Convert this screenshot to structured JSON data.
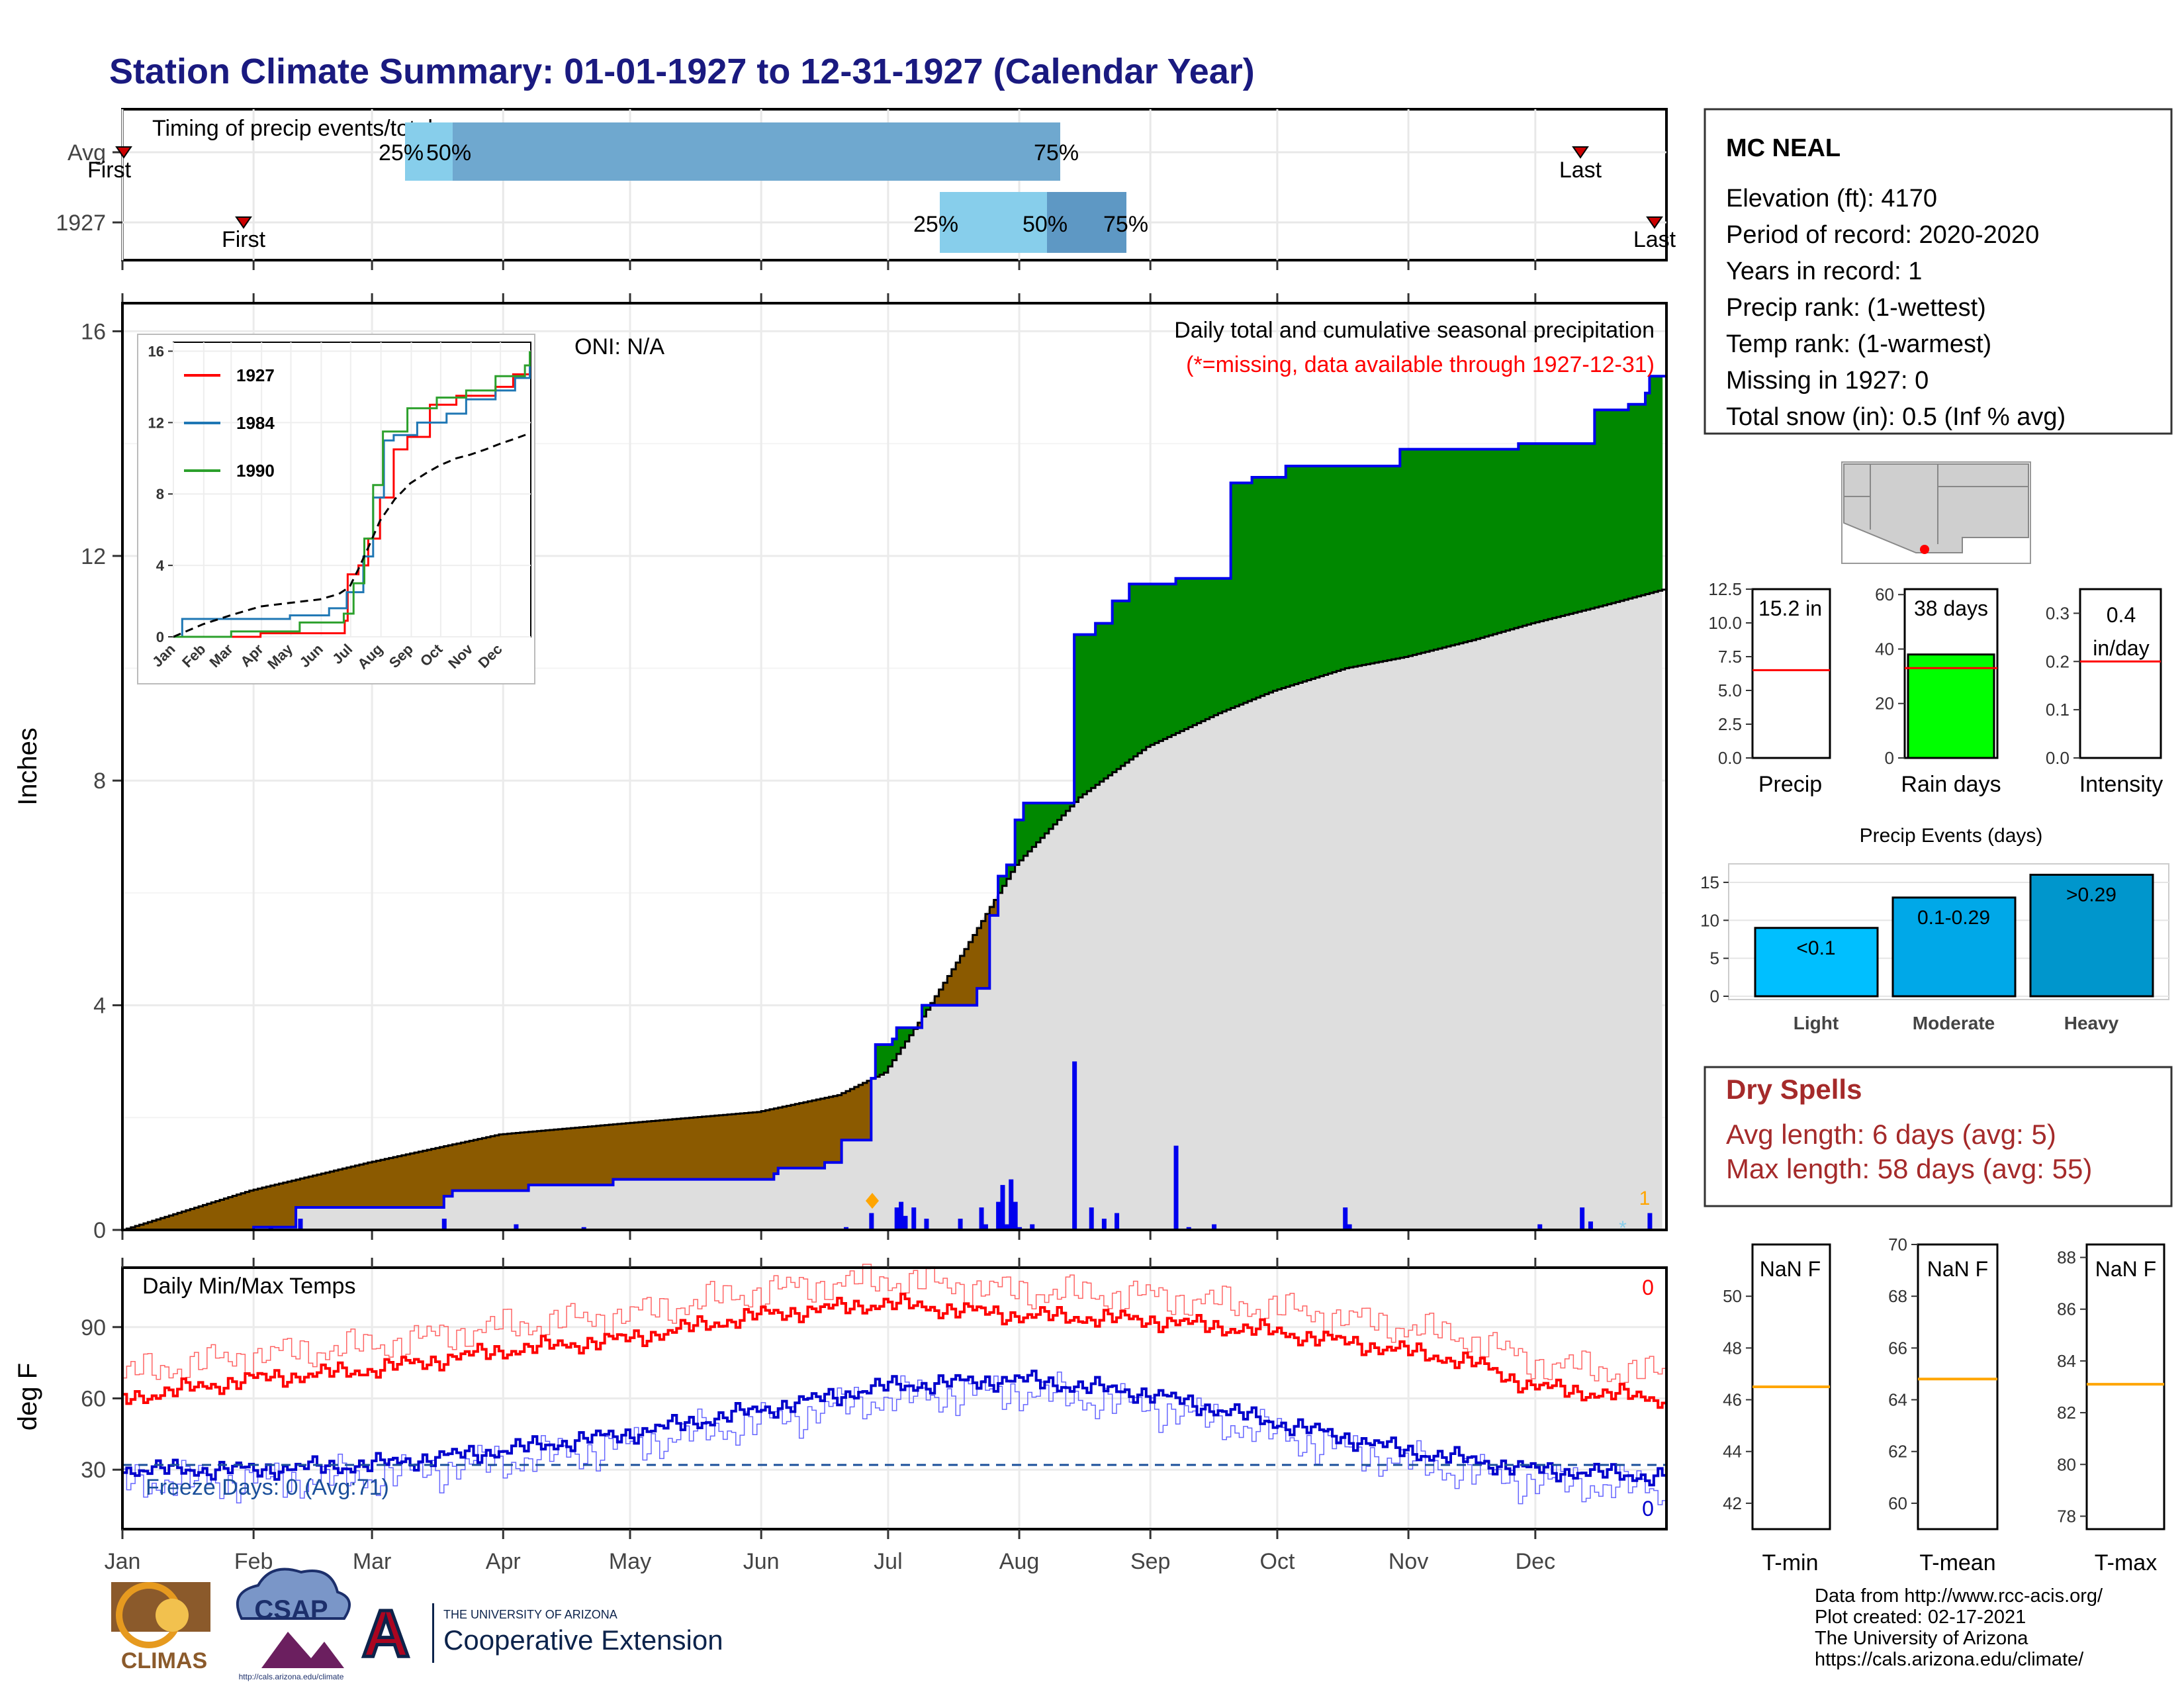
{
  "title": "Station Climate Summary: 01-01-1927 to 12-31-1927 (Calendar Year)",
  "months": [
    "Jan",
    "Feb",
    "Mar",
    "Apr",
    "May",
    "Jun",
    "Jul",
    "Aug",
    "Sep",
    "Oct",
    "Nov",
    "Dec"
  ],
  "colors": {
    "title": "#1a1a80",
    "brown": "#8B5A00",
    "green": "#008800",
    "blue": "#0000EE",
    "red": "#FF0000",
    "gray": "#DEDEDE",
    "light_blue": "#87CEEB",
    "mid_blue": "#6FA8CF",
    "dark_blue": "#5E98C4",
    "dry_red": "#A52A2A",
    "orange": "#FFA500"
  },
  "timing": {
    "label": "Timing of precip events/totals",
    "rows": [
      {
        "name": "Avg",
        "first": "First",
        "last": "Last",
        "p25": "25%",
        "p50": "50%",
        "p75": "75%"
      },
      {
        "name": "1927",
        "first": "First",
        "last": "Last",
        "p25": "25%",
        "p50": "50%",
        "p75": "75%"
      }
    ]
  },
  "station": {
    "name": "MC NEAL",
    "lines": [
      "Elevation (ft): 4170",
      "Period of record: 2020-2020",
      "Years in record: 1",
      "Precip rank:  (1-wettest)",
      "Temp rank:  (1-warmest)",
      "Missing in 1927: 0",
      "Total snow (in): 0.5 (Inf % avg)"
    ]
  },
  "main": {
    "ylabel": "Inches",
    "oni": "ONI: N/A",
    "subtitle": "Daily total and cumulative seasonal precipitation",
    "missing_note": "(*=missing, data available through 1927-12-31)",
    "count_label": "1"
  },
  "temps": {
    "label": "Daily Min/Max Temps",
    "ylabel": "deg F",
    "freeze": "Freeze Days: 0 (Avg:71)",
    "max_count": "0",
    "min_count": "0"
  },
  "summary_bars": {
    "precip": {
      "label": "Precip",
      "value_label": "15.2 in"
    },
    "rain_days": {
      "label": "Rain days",
      "value_label": "38 days"
    },
    "intensity": {
      "label": "Intensity",
      "value_label_1": "0.4",
      "value_label_2": "in/day"
    }
  },
  "events": {
    "title": "Precip Events (days)",
    "bars": [
      {
        "cat": "Light",
        "label": "<0.1"
      },
      {
        "cat": "Moderate",
        "label": "0.1-0.29"
      },
      {
        "cat": "Heavy",
        "label": ">0.29"
      }
    ]
  },
  "dry_spells": {
    "title": "Dry Spells",
    "avg": "Avg length: 6 days (avg: 5)",
    "max": "Max length: 58 days (avg: 55)"
  },
  "temp_panels": [
    {
      "label": "T-min",
      "value": "NaN F"
    },
    {
      "label": "T-mean",
      "value": "NaN F"
    },
    {
      "label": "T-max",
      "value": "NaN F"
    }
  ],
  "footer": {
    "lines": [
      "Data from http://www.rcc-acis.org/",
      "Plot created: 02-17-2021",
      "The University of Arizona",
      "https://cals.arizona.edu/climate/"
    ],
    "logo_climas": "CLIMAS",
    "logo_csap": "CSAP",
    "csap_url": "http://cals.arizona.edu/climate",
    "ua_small": "THE UNIVERSITY OF ARIZONA",
    "ua_big": "Cooperative Extension",
    "ua_letter": "A"
  },
  "chart_data": [
    {
      "type": "area",
      "name": "Daily total and cumulative seasonal precipitation",
      "xlabel": "",
      "ylabel": "Inches",
      "ylim": [
        0,
        16.5
      ],
      "yticks": [
        0,
        4,
        8,
        12,
        16
      ],
      "series": [
        {
          "name": "1927 cumulative",
          "points": [
            [
              1,
              0
            ],
            [
              32,
              0.05
            ],
            [
              42,
              0.4
            ],
            [
              53,
              0.4
            ],
            [
              76,
              0.4
            ],
            [
              77,
              0.6
            ],
            [
              79,
              0.7
            ],
            [
              96,
              0.7
            ],
            [
              97,
              0.8
            ],
            [
              117,
              0.9
            ],
            [
              155,
              1.0
            ],
            [
              156,
              1.1
            ],
            [
              166,
              1.1
            ],
            [
              167,
              1.2
            ],
            [
              171,
              1.6
            ],
            [
              176,
              1.6
            ],
            [
              177,
              1.6
            ],
            [
              178,
              2.7
            ],
            [
              179,
              3.3
            ],
            [
              183,
              3.4
            ],
            [
              184,
              3.6
            ],
            [
              188,
              3.6
            ],
            [
              190,
              4.0
            ],
            [
              197,
              4.0
            ],
            [
              203,
              4.3
            ],
            [
              206,
              5.6
            ],
            [
              208,
              6.3
            ],
            [
              210,
              6.5
            ],
            [
              212,
              7.3
            ],
            [
              214,
              7.6
            ],
            [
              225,
              7.6
            ],
            [
              226,
              10.6
            ],
            [
              231,
              10.8
            ],
            [
              235,
              11.2
            ],
            [
              239,
              11.5
            ],
            [
              250,
              11.6
            ],
            [
              263,
              13.3
            ],
            [
              268,
              13.4
            ],
            [
              275,
              13.4
            ],
            [
              276,
              13.6
            ],
            [
              302,
              13.6
            ],
            [
              303,
              13.9
            ],
            [
              330,
              13.9
            ],
            [
              331,
              14.0
            ],
            [
              348,
              14.0
            ],
            [
              349,
              14.6
            ],
            [
              357,
              14.7
            ],
            [
              361,
              14.9
            ],
            [
              362,
              15.2
            ],
            [
              365,
              15.2
            ]
          ]
        },
        {
          "name": "Average cumulative",
          "points": [
            [
              1,
              0
            ],
            [
              31,
              0.7
            ],
            [
              59,
              1.2
            ],
            [
              90,
              1.7
            ],
            [
              120,
              1.9
            ],
            [
              151,
              2.1
            ],
            [
              170,
              2.4
            ],
            [
              181,
              2.8
            ],
            [
              190,
              3.8
            ],
            [
              200,
              5.0
            ],
            [
              212,
              6.5
            ],
            [
              227,
              7.7
            ],
            [
              243,
              8.6
            ],
            [
              260,
              9.2
            ],
            [
              273,
              9.6
            ],
            [
              290,
              10.0
            ],
            [
              304,
              10.2
            ],
            [
              320,
              10.5
            ],
            [
              334,
              10.8
            ],
            [
              350,
              11.1
            ],
            [
              365,
              11.4
            ]
          ]
        }
      ],
      "daily_bars": [
        [
          36,
          0.05
        ],
        [
          43,
          0.2
        ],
        [
          77,
          0.2
        ],
        [
          94,
          0.1
        ],
        [
          110,
          0.05
        ],
        [
          172,
          0.05
        ],
        [
          178,
          0.3
        ],
        [
          184,
          0.4
        ],
        [
          185,
          0.5
        ],
        [
          186,
          0.25
        ],
        [
          188,
          0.4
        ],
        [
          191,
          0.2
        ],
        [
          199,
          0.2
        ],
        [
          204,
          0.4
        ],
        [
          205,
          0.1
        ],
        [
          208,
          0.5
        ],
        [
          209,
          0.8
        ],
        [
          210,
          0.1
        ],
        [
          211,
          0.9
        ],
        [
          212,
          0.5
        ],
        [
          213,
          0.05
        ],
        [
          216,
          0.1
        ],
        [
          226,
          3.0
        ],
        [
          230,
          0.4
        ],
        [
          233,
          0.2
        ],
        [
          236,
          0.3
        ],
        [
          250,
          1.5
        ],
        [
          252,
          0.02
        ],
        [
          253,
          0.05
        ],
        [
          259,
          0.1
        ],
        [
          290,
          0.4
        ],
        [
          291,
          0.1
        ],
        [
          336,
          0.1
        ],
        [
          346,
          0.4
        ],
        [
          348,
          0.15
        ],
        [
          362,
          0.3
        ]
      ]
    },
    {
      "type": "line",
      "name": "Inset cumulative comparison",
      "ylim": [
        0,
        16.5
      ],
      "yticks": [
        0,
        4,
        8,
        12,
        16
      ],
      "series": [
        {
          "name": "1927",
          "color": "#FF0000",
          "points": [
            [
              1,
              0
            ],
            [
              90,
              0.2
            ],
            [
              176,
              0.9
            ],
            [
              179,
              3.5
            ],
            [
              190,
              4.0
            ],
            [
              200,
              5.5
            ],
            [
              212,
              7.8
            ],
            [
              226,
              10.5
            ],
            [
              240,
              11.2
            ],
            [
              263,
              13.0
            ],
            [
              290,
              13.5
            ],
            [
              330,
              14.0
            ],
            [
              348,
              14.7
            ],
            [
              365,
              15.2
            ]
          ]
        },
        {
          "name": "1984",
          "color": "#1F77B4",
          "points": [
            [
              1,
              0
            ],
            [
              10,
              1.0
            ],
            [
              80,
              1.0
            ],
            [
              120,
              1.2
            ],
            [
              160,
              1.6
            ],
            [
              178,
              2.5
            ],
            [
              195,
              4.5
            ],
            [
              205,
              7.8
            ],
            [
              216,
              11.0
            ],
            [
              226,
              11.3
            ],
            [
              250,
              12.0
            ],
            [
              280,
              12.5
            ],
            [
              300,
              13.3
            ],
            [
              330,
              13.8
            ],
            [
              350,
              14.5
            ],
            [
              365,
              16.0
            ]
          ]
        },
        {
          "name": "1990",
          "color": "#2CA02C",
          "points": [
            [
              1,
              0
            ],
            [
              60,
              0.3
            ],
            [
              130,
              0.8
            ],
            [
              175,
              1.3
            ],
            [
              185,
              3.0
            ],
            [
              196,
              5.5
            ],
            [
              205,
              8.5
            ],
            [
              215,
              11.5
            ],
            [
              240,
              12.8
            ],
            [
              270,
              13.4
            ],
            [
              300,
              13.8
            ],
            [
              330,
              14.6
            ],
            [
              360,
              15.2
            ],
            [
              365,
              16.0
            ]
          ]
        },
        {
          "name": "Average",
          "color": "#000000",
          "points": [
            [
              1,
              0
            ],
            [
              31,
              0.7
            ],
            [
              59,
              1.2
            ],
            [
              90,
              1.7
            ],
            [
              120,
              1.9
            ],
            [
              151,
              2.1
            ],
            [
              170,
              2.4
            ],
            [
              181,
              2.8
            ],
            [
              190,
              3.8
            ],
            [
              200,
              5.0
            ],
            [
              212,
              6.5
            ],
            [
              227,
              7.7
            ],
            [
              243,
              8.6
            ],
            [
              260,
              9.2
            ],
            [
              273,
              9.6
            ],
            [
              290,
              10.0
            ],
            [
              304,
              10.2
            ],
            [
              320,
              10.5
            ],
            [
              334,
              10.8
            ],
            [
              350,
              11.1
            ],
            [
              365,
              11.4
            ]
          ]
        }
      ]
    },
    {
      "type": "line",
      "name": "Daily Min/Max Temps",
      "ylabel": "deg F",
      "ylim": [
        5,
        115
      ],
      "yticks": [
        30,
        60,
        90
      ],
      "freeze_line": 32,
      "series": [
        {
          "name": "Max",
          "color": "#FF0000",
          "points": [
            [
              1,
              60
            ],
            [
              31,
              68
            ],
            [
              59,
              72
            ],
            [
              90,
              80
            ],
            [
              120,
              85
            ],
            [
              151,
              95
            ],
            [
              181,
              100
            ],
            [
              212,
              95
            ],
            [
              243,
              93
            ],
            [
              273,
              88
            ],
            [
              304,
              80
            ],
            [
              320,
              75
            ],
            [
              334,
              65
            ],
            [
              350,
              62
            ],
            [
              365,
              60
            ]
          ]
        },
        {
          "name": "Min",
          "color": "#0000CC",
          "points": [
            [
              1,
              30
            ],
            [
              31,
              30
            ],
            [
              59,
              32
            ],
            [
              90,
              38
            ],
            [
              120,
              45
            ],
            [
              151,
              55
            ],
            [
              181,
              65
            ],
            [
              212,
              68
            ],
            [
              243,
              62
            ],
            [
              273,
              50
            ],
            [
              304,
              38
            ],
            [
              334,
              30
            ],
            [
              365,
              27
            ]
          ]
        }
      ]
    },
    {
      "type": "bar",
      "name": "Precip Events (days)",
      "categories": [
        "Light",
        "Moderate",
        "Heavy"
      ],
      "values": [
        9,
        13,
        16
      ],
      "ylim": [
        0,
        17
      ],
      "yticks": [
        0,
        5,
        10,
        15
      ]
    },
    {
      "type": "bar",
      "name": "Summary",
      "panels": [
        {
          "label": "Precip",
          "value": 15.2,
          "avg": 6.5,
          "ylim": [
            0,
            12.5
          ],
          "yticks": [
            0.0,
            2.5,
            5.0,
            7.5,
            10.0,
            12.5
          ]
        },
        {
          "label": "Rain days",
          "value": 38,
          "avg": 33,
          "ylim": [
            0,
            62
          ],
          "yticks": [
            0,
            20,
            40,
            60
          ]
        },
        {
          "label": "Intensity",
          "value": 0.4,
          "avg": 0.2,
          "ylim": [
            0,
            0.35
          ],
          "yticks": [
            0.0,
            0.1,
            0.2,
            0.3
          ]
        }
      ]
    },
    {
      "type": "bar",
      "name": "Temperature panels",
      "panels": [
        {
          "label": "T-min",
          "avg": 46.5,
          "ylim": [
            41,
            52
          ],
          "yticks": [
            42,
            44,
            46,
            48,
            50
          ]
        },
        {
          "label": "T-mean",
          "avg": 64.8,
          "ylim": [
            59,
            70
          ],
          "yticks": [
            60,
            62,
            64,
            66,
            68,
            70
          ]
        },
        {
          "label": "T-max",
          "avg": 83.1,
          "ylim": [
            77.5,
            88.5
          ],
          "yticks": [
            78,
            80,
            82,
            84,
            86,
            88
          ]
        }
      ]
    }
  ]
}
